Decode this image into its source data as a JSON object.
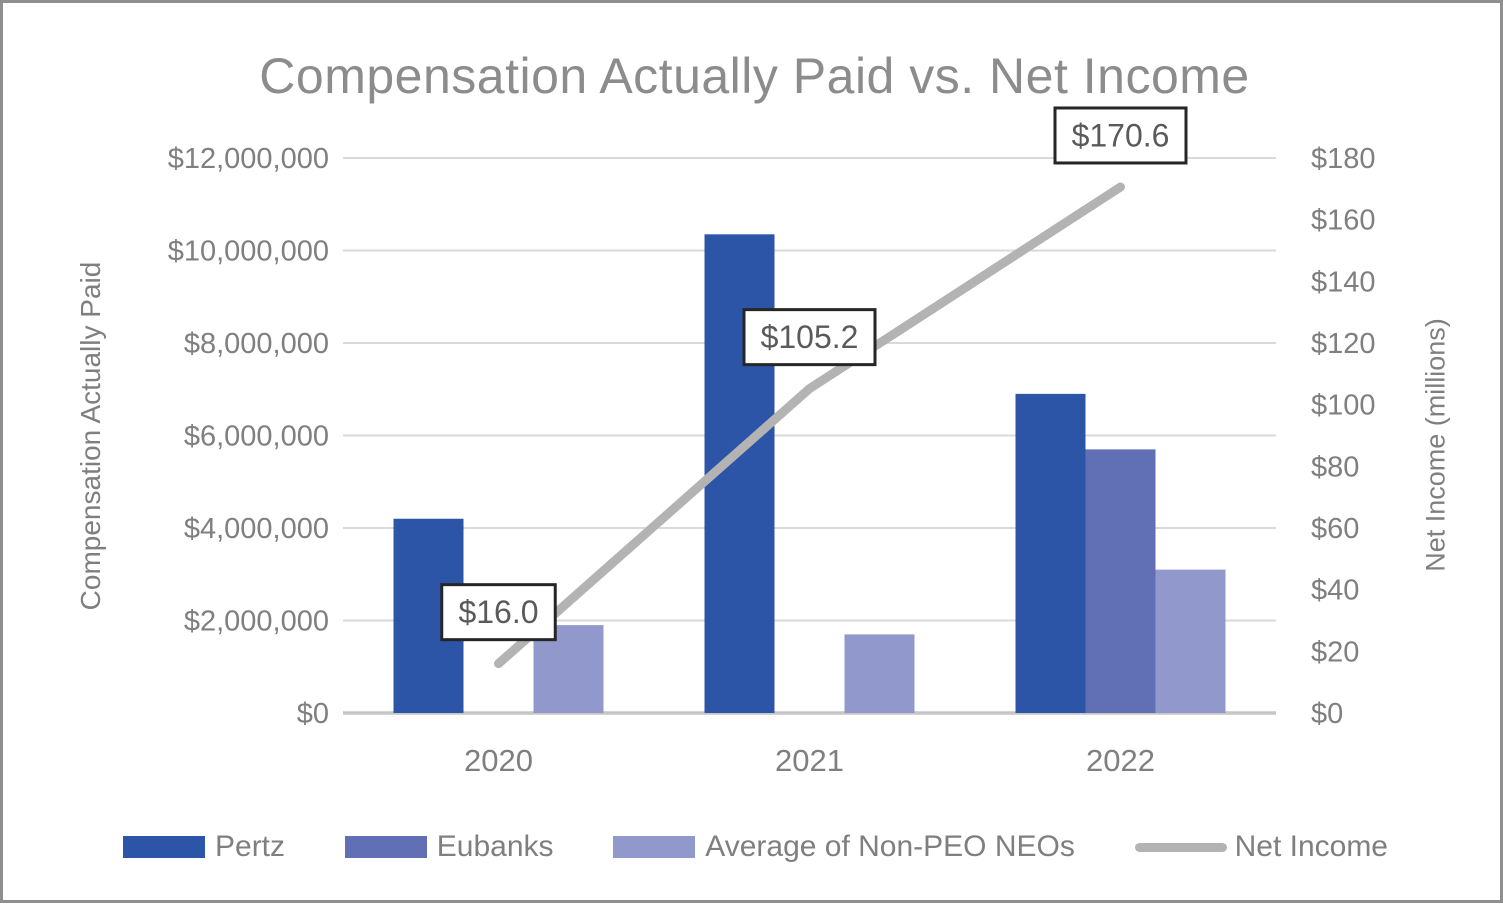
{
  "chart_data": {
    "type": "combo-bar-line",
    "title": "Compensation Actually Paid vs. Net Income",
    "categories": [
      "2020",
      "2021",
      "2022"
    ],
    "bar_series": [
      {
        "name": "Pertz",
        "color": "#2C55A8",
        "values": [
          4200000,
          10350000,
          6900000
        ]
      },
      {
        "name": "Eubanks",
        "color": "#6170B4",
        "values": [
          0,
          0,
          5700000
        ]
      },
      {
        "name": "Average of Non-PEO NEOs",
        "color": "#9199CC",
        "values": [
          1900000,
          1700000,
          3100000
        ]
      }
    ],
    "line_series": {
      "name": "Net Income",
      "color": "#B3B3B3",
      "axis": "right",
      "values": [
        16.0,
        105.2,
        170.6
      ],
      "point_labels": [
        "$16.0",
        "$105.2",
        "$170.6"
      ]
    },
    "left_axis": {
      "title": "Compensation Actually Paid",
      "min": 0,
      "max": 12000000,
      "step": 2000000,
      "tick_labels": [
        "$0",
        "$2,000,000",
        "$4,000,000",
        "$6,000,000",
        "$8,000,000",
        "$10,000,000",
        "$12,000,000"
      ]
    },
    "right_axis": {
      "title": "Net Income (millions)",
      "min": 0,
      "max": 180,
      "step": 20,
      "tick_labels": [
        "$0",
        "$20",
        "$40",
        "$60",
        "$80",
        "$100",
        "$120",
        "$140",
        "$160",
        "$180"
      ]
    },
    "grid": true,
    "legend_position": "bottom",
    "colors": {
      "gridline": "#D9D9D9",
      "baseline": "#C6C6C6",
      "tick_text": "#7F7F7F",
      "title_text": "#8C8C8C",
      "label_box_border": "#262626",
      "label_box_fill": "#FFFFFF",
      "label_text": "#5A5A5A",
      "frame_border": "#8F8F8F"
    }
  }
}
